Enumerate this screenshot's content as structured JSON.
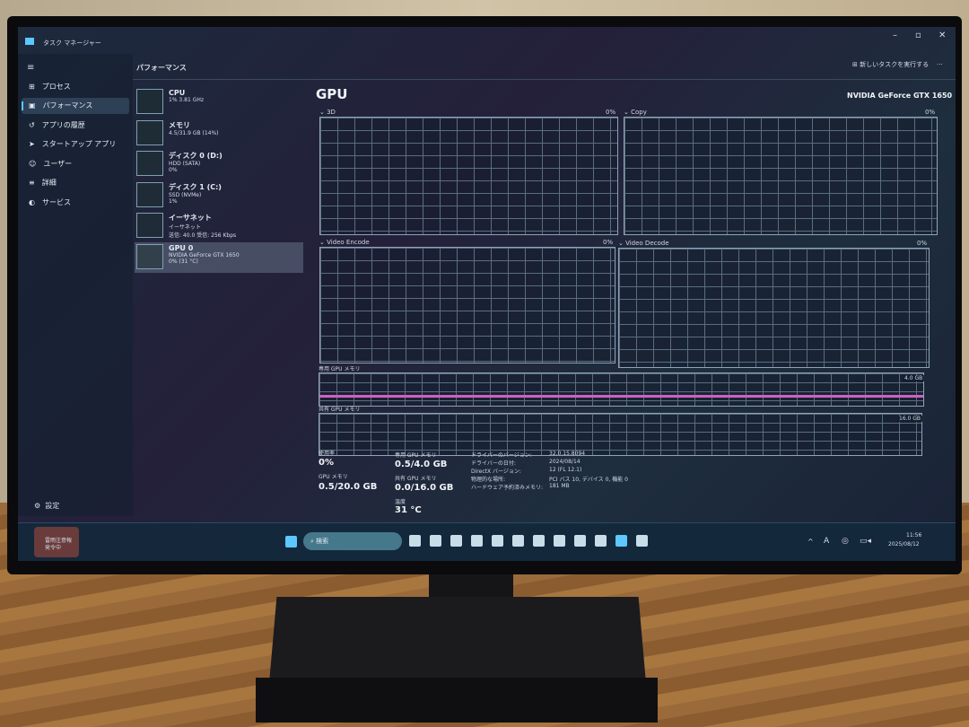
{
  "window": {
    "title": "タスク マネージャー",
    "run_task": "新しいタスクを実行する",
    "more": "..."
  },
  "nav": {
    "items": [
      {
        "label": "プロセス",
        "icon": "process-icon"
      },
      {
        "label": "パフォーマンス",
        "icon": "performance-icon",
        "selected": true
      },
      {
        "label": "アプリの履歴",
        "icon": "history-icon"
      },
      {
        "label": "スタートアップ アプリ",
        "icon": "startup-icon"
      },
      {
        "label": "ユーザー",
        "icon": "users-icon"
      },
      {
        "label": "詳細",
        "icon": "details-icon"
      },
      {
        "label": "サービス",
        "icon": "services-icon"
      }
    ],
    "settings": "設定"
  },
  "section_title": "パフォーマンス",
  "devices": [
    {
      "name": "CPU",
      "sub1": "1% 3.81 GHz",
      "sub2": ""
    },
    {
      "name": "メモリ",
      "sub1": "4.5/31.9 GB (14%)",
      "sub2": ""
    },
    {
      "name": "ディスク 0 (D:)",
      "sub1": "HDD (SATA)",
      "sub2": "0%"
    },
    {
      "name": "ディスク 1 (C:)",
      "sub1": "SSD (NVMe)",
      "sub2": "1%"
    },
    {
      "name": "イーサネット",
      "sub1": "イーサネット",
      "sub2": "送信: 40.0 受信: 256 Kbps"
    },
    {
      "name": "GPU 0",
      "sub1": "NVIDIA GeForce GTX 1650",
      "sub2": "0% (31 °C)",
      "selected": true
    }
  ],
  "gpu": {
    "title": "GPU",
    "model": "NVIDIA GeForce GTX 1650",
    "graphs": [
      {
        "name": "3D",
        "value": "0%"
      },
      {
        "name": "Copy",
        "value": "0%"
      },
      {
        "name": "Video Encode",
        "value": "0%"
      },
      {
        "name": "Video Decode",
        "value": "0%"
      }
    ],
    "dedicated_label": "専用 GPU メモリ",
    "dedicated_max": "4.0 GB",
    "shared_label": "共有 GPU メモリ",
    "shared_max": "16.0 GB",
    "stats": {
      "usage_label": "使用率",
      "usage": "0%",
      "gpu_mem_label": "GPU メモリ",
      "gpu_mem": "0.5/20.0 GB",
      "ded_label": "専用 GPU メモリ",
      "ded": "0.5/4.0 GB",
      "shr_label": "共有 GPU メモリ",
      "shr": "0.0/16.0 GB",
      "temp_label": "温度",
      "temp": "31 °C"
    },
    "info": [
      {
        "k": "ドライバーのバージョン:",
        "v": "32.0.15.8094"
      },
      {
        "k": "ドライバーの日付:",
        "v": "2024/08/14"
      },
      {
        "k": "DirectX バージョン:",
        "v": "12 (FL 12.1)"
      },
      {
        "k": "物理的な場所:",
        "v": "PCI バス 10, デバイス 0, 機能 0"
      },
      {
        "k": "ハードウェア予約済みメモリ:",
        "v": "181 MB"
      }
    ]
  },
  "weather": {
    "line1": "雷雨注意報",
    "line2": "発令中"
  },
  "taskbar": {
    "search": "検索",
    "time": "11:56",
    "date": "2025/08/12",
    "ime": "A"
  },
  "colors": {
    "accent": "#5cc8ff",
    "gpu_line": "#d060c0"
  }
}
